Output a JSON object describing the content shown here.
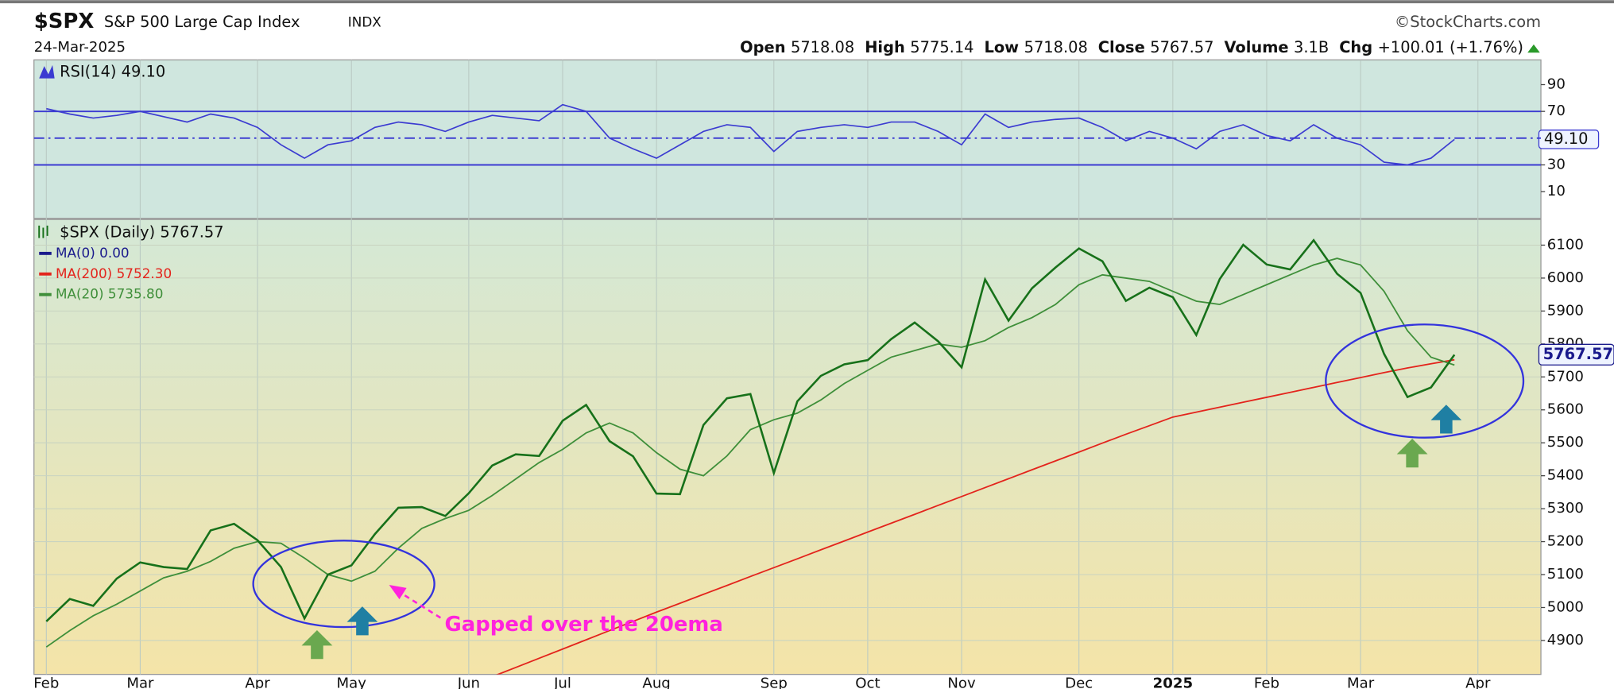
{
  "header": {
    "symbol": "$SPX",
    "name": "S&P 500 Large Cap Index",
    "exchange": "INDX",
    "credit": "©StockCharts.com",
    "date": "24-Mar-2025",
    "quote": [
      {
        "label": "Open",
        "value": "5718.08"
      },
      {
        "label": "High",
        "value": "5775.14"
      },
      {
        "label": "Low",
        "value": "5718.08"
      },
      {
        "label": "Close",
        "value": "5767.57"
      },
      {
        "label": "Volume",
        "value": "3.1B"
      },
      {
        "label": "Chg",
        "value": "+100.01 (+1.76%)"
      }
    ]
  },
  "chart_data": [
    {
      "type": "line",
      "title": "RSI(14) 49.10",
      "color": "#3b3bd1",
      "ylim": [
        -10,
        108.5
      ],
      "yticks": [
        90,
        70,
        {
          "value": 49.1,
          "label": "49.10"
        },
        30,
        10
      ],
      "ref_lines": [
        70,
        50,
        30
      ],
      "values": [
        72,
        68,
        65,
        67,
        70,
        66,
        62,
        68,
        65,
        58,
        45,
        35,
        45,
        48,
        58,
        62,
        60,
        55,
        62,
        67,
        65,
        63,
        75,
        70,
        50,
        42,
        35,
        45,
        55,
        60,
        58,
        40,
        55,
        58,
        60,
        58,
        62,
        62,
        55,
        45,
        68,
        58,
        62,
        64,
        65,
        58,
        48,
        55,
        50,
        42,
        55,
        60,
        52,
        48,
        60,
        50,
        45,
        32,
        30,
        35,
        49.1,
        null
      ]
    },
    {
      "type": "line",
      "grid": true,
      "ylim": [
        4797,
        6178
      ],
      "yticks": [
        4900,
        5000,
        5100,
        5200,
        5300,
        5400,
        5500,
        5600,
        5700,
        5800,
        5900,
        6000,
        6100
      ],
      "last_value": 5767.57,
      "categories": [
        "Feb",
        null,
        null,
        null,
        "Mar",
        null,
        null,
        null,
        null,
        "Apr",
        null,
        null,
        null,
        "May",
        null,
        null,
        null,
        null,
        "Jun",
        null,
        null,
        null,
        "Jul",
        null,
        null,
        null,
        "Aug",
        null,
        null,
        null,
        null,
        "Sep",
        null,
        null,
        null,
        "Oct",
        null,
        null,
        null,
        "Nov",
        null,
        null,
        null,
        null,
        "Dec",
        null,
        null,
        null,
        "2025",
        null,
        null,
        null,
        "Feb",
        null,
        null,
        null,
        "Mar",
        null,
        null,
        null,
        null,
        "Apr"
      ],
      "series": [
        {
          "name": "$SPX (Daily) 5767.57",
          "color": "#17711a",
          "values": [
            4958,
            5026,
            5005,
            5088,
            5137,
            5123,
            5117,
            5234,
            5254,
            5204,
            5123,
            4967,
            5100,
            5128,
            5223,
            5303,
            5305,
            5278,
            5347,
            5431,
            5465,
            5460,
            5567,
            5615,
            5505,
            5459,
            5346,
            5344,
            5554,
            5635,
            5648,
            5408,
            5626,
            5703,
            5738,
            5751,
            5815,
            5865,
            5808,
            5729,
            5996,
            5871,
            5969,
            6032,
            6090,
            6051,
            5931,
            5971,
            5942,
            5827,
            5997,
            6101,
            6041,
            6026,
            6115,
            6013,
            5955,
            5770,
            5639,
            5668,
            5767.57,
            null
          ]
        },
        {
          "name": "MA(0) 0.00",
          "color": "#1a1a8c"
        },
        {
          "name": "MA(200) 5752.30",
          "color": "#e3241c",
          "values": [
            null,
            null,
            null,
            null,
            null,
            null,
            null,
            null,
            null,
            null,
            null,
            null,
            null,
            null,
            null,
            null,
            null,
            null,
            null,
            4790,
            4818,
            4846,
            4874,
            4902,
            4930,
            4958,
            4986,
            5013,
            5040,
            5067,
            5094,
            5121,
            5148,
            5175,
            5202,
            5229,
            5256,
            5283,
            5310,
            5337,
            5364,
            5391,
            5418,
            5445,
            5472,
            5499,
            5526,
            5552,
            5578,
            5593,
            5608,
            5623,
            5638,
            5653,
            5668,
            5683,
            5698,
            5713,
            5727,
            5740,
            5752,
            null
          ]
        },
        {
          "name": "MA(20) 5735.80",
          "color": "#3f8f3a",
          "values": [
            4880,
            4930,
            4975,
            5010,
            5050,
            5090,
            5110,
            5140,
            5180,
            5200,
            5195,
            5150,
            5100,
            5080,
            5110,
            5180,
            5240,
            5270,
            5295,
            5340,
            5390,
            5440,
            5480,
            5530,
            5560,
            5530,
            5470,
            5420,
            5400,
            5460,
            5540,
            5570,
            5590,
            5630,
            5680,
            5720,
            5760,
            5780,
            5800,
            5790,
            5810,
            5850,
            5880,
            5920,
            5980,
            6010,
            6000,
            5990,
            5960,
            5930,
            5920,
            5950,
            5980,
            6010,
            6040,
            6060,
            6040,
            5960,
            5840,
            5760,
            5735.8,
            null
          ]
        }
      ],
      "annotations": [
        {
          "text": "Gapped over the 20ema",
          "color": "#ff22dd"
        }
      ]
    }
  ]
}
